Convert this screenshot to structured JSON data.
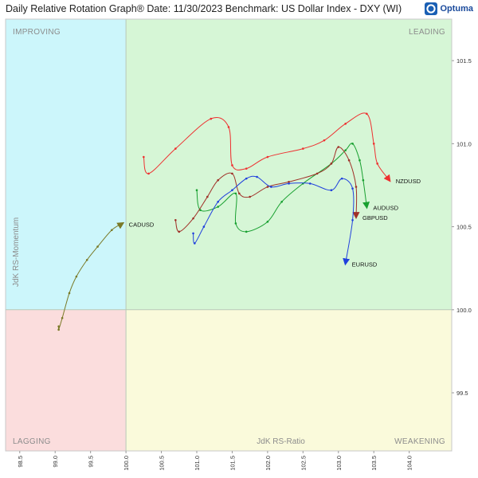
{
  "header": {
    "title": "Daily Relative Rotation Graph®   Date: 11/30/2023  Benchmark: US Dollar Index - DXY (WI)",
    "brand": "Optuma"
  },
  "colors": {
    "improving": "#ccf6fb",
    "leading": "#d6f6d6",
    "lagging": "#fbdddd",
    "weakening": "#fafadb"
  },
  "chart_data": {
    "type": "scatter",
    "xlabel": "JdK RS-Ratio",
    "ylabel": "JdK RS-Momentum",
    "xlim": [
      98.3,
      104.6
    ],
    "ylim": [
      99.15,
      101.75
    ],
    "center": [
      100.0,
      100.0
    ],
    "x_ticks": [
      98.5,
      99.0,
      99.5,
      100.0,
      100.5,
      101.0,
      101.5,
      102.0,
      102.5,
      103.0,
      103.5,
      104.0
    ],
    "x_tick_labels": [
      "98.5",
      "99.0",
      "99.5",
      "100.0",
      "100.5",
      "101.0",
      "101.5",
      "102.0",
      "102.5",
      "103.0",
      "103.5",
      "104.0"
    ],
    "y_ticks": [
      99.5,
      100.0,
      100.5,
      101.0,
      101.5
    ],
    "y_tick_labels": [
      "99.5",
      "100.0",
      "100.5",
      "101.0",
      "101.5"
    ],
    "quadrants": [
      {
        "name": "IMPROVING",
        "position": "top-left"
      },
      {
        "name": "LEADING",
        "position": "top-right"
      },
      {
        "name": "LAGGING",
        "position": "bottom-left"
      },
      {
        "name": "WEAKENING",
        "position": "bottom-right"
      }
    ],
    "series": [
      {
        "name": "NZDUSD",
        "color": "#ee3030",
        "points": [
          [
            100.25,
            100.92
          ],
          [
            100.32,
            100.82
          ],
          [
            100.7,
            100.97
          ],
          [
            101.2,
            101.15
          ],
          [
            101.45,
            101.1
          ],
          [
            101.5,
            100.87
          ],
          [
            101.7,
            100.85
          ],
          [
            102.0,
            100.92
          ],
          [
            102.5,
            100.97
          ],
          [
            102.8,
            101.02
          ],
          [
            103.1,
            101.12
          ],
          [
            103.4,
            101.18
          ],
          [
            103.5,
            101.0
          ],
          [
            103.55,
            100.88
          ],
          [
            103.72,
            100.78
          ]
        ]
      },
      {
        "name": "AUDUSD",
        "color": "#18a030",
        "points": [
          [
            101.0,
            100.72
          ],
          [
            101.05,
            100.6
          ],
          [
            101.3,
            100.62
          ],
          [
            101.55,
            100.7
          ],
          [
            101.55,
            100.52
          ],
          [
            101.7,
            100.47
          ],
          [
            102.0,
            100.53
          ],
          [
            102.2,
            100.65
          ],
          [
            102.5,
            100.76
          ],
          [
            102.9,
            100.88
          ],
          [
            103.1,
            100.96
          ],
          [
            103.2,
            101.0
          ],
          [
            103.3,
            100.9
          ],
          [
            103.35,
            100.78
          ],
          [
            103.4,
            100.62
          ]
        ]
      },
      {
        "name": "GBPUSD",
        "color": "#a03028",
        "points": [
          [
            100.7,
            100.54
          ],
          [
            100.75,
            100.47
          ],
          [
            100.95,
            100.55
          ],
          [
            101.15,
            100.68
          ],
          [
            101.3,
            100.78
          ],
          [
            101.5,
            100.82
          ],
          [
            101.6,
            100.7
          ],
          [
            101.75,
            100.68
          ],
          [
            102.0,
            100.74
          ],
          [
            102.3,
            100.77
          ],
          [
            102.7,
            100.82
          ],
          [
            102.9,
            100.88
          ],
          [
            103.0,
            100.98
          ],
          [
            103.15,
            100.9
          ],
          [
            103.25,
            100.74
          ],
          [
            103.25,
            100.56
          ]
        ]
      },
      {
        "name": "EURUSD",
        "color": "#2040dd",
        "points": [
          [
            100.95,
            100.46
          ],
          [
            100.97,
            100.4
          ],
          [
            101.1,
            100.5
          ],
          [
            101.3,
            100.65
          ],
          [
            101.5,
            100.72
          ],
          [
            101.7,
            100.79
          ],
          [
            101.85,
            100.8
          ],
          [
            102.05,
            100.74
          ],
          [
            102.3,
            100.76
          ],
          [
            102.6,
            100.76
          ],
          [
            102.9,
            100.72
          ],
          [
            103.05,
            100.79
          ],
          [
            103.2,
            100.73
          ],
          [
            103.2,
            100.54
          ],
          [
            103.1,
            100.28
          ]
        ]
      },
      {
        "name": "CADUSD",
        "color": "#7a7a28",
        "points": [
          [
            99.05,
            99.9
          ],
          [
            99.05,
            99.88
          ],
          [
            99.1,
            99.95
          ],
          [
            99.2,
            100.1
          ],
          [
            99.3,
            100.2
          ],
          [
            99.45,
            100.3
          ],
          [
            99.6,
            100.38
          ],
          [
            99.8,
            100.48
          ],
          [
            99.95,
            100.52
          ]
        ]
      }
    ]
  }
}
